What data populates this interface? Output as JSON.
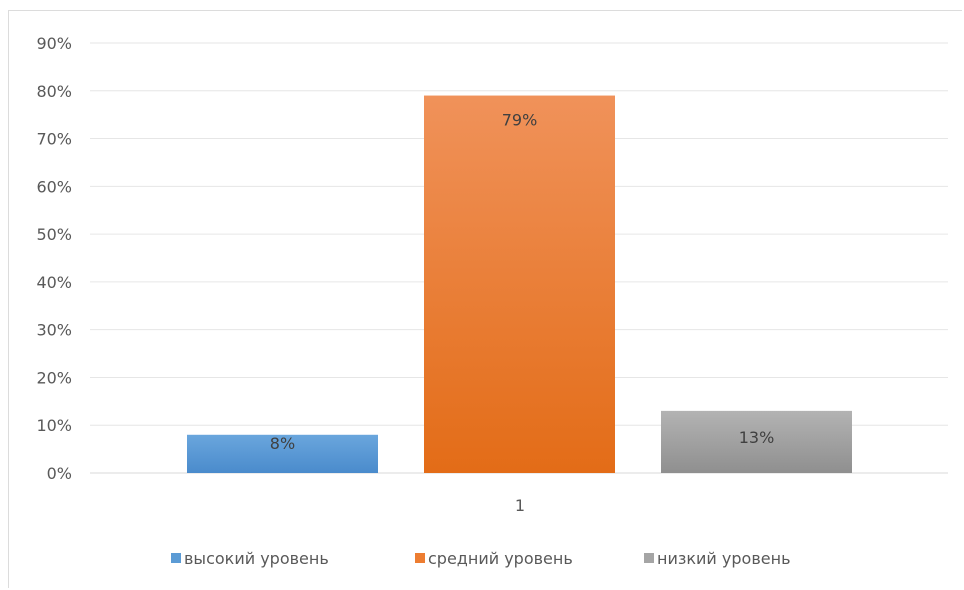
{
  "chart_data": {
    "type": "bar",
    "categories": [
      "1"
    ],
    "series": [
      {
        "name": "высокий уровень",
        "values": [
          8
        ],
        "color": "#5b9bd5",
        "label": "8%"
      },
      {
        "name": "средний уровень",
        "values": [
          79
        ],
        "color": "#ed7d31",
        "label": "79%"
      },
      {
        "name": "низкий уровень",
        "values": [
          13
        ],
        "color": "#a5a5a5",
        "label": "13%"
      }
    ],
    "yticks": [
      "0%",
      "10%",
      "20%",
      "30%",
      "40%",
      "50%",
      "60%",
      "70%",
      "80%",
      "90%"
    ],
    "ylim": [
      0,
      90
    ],
    "grid": true,
    "legend": "bottom",
    "title": "",
    "xlabel": "",
    "ylabel": ""
  }
}
